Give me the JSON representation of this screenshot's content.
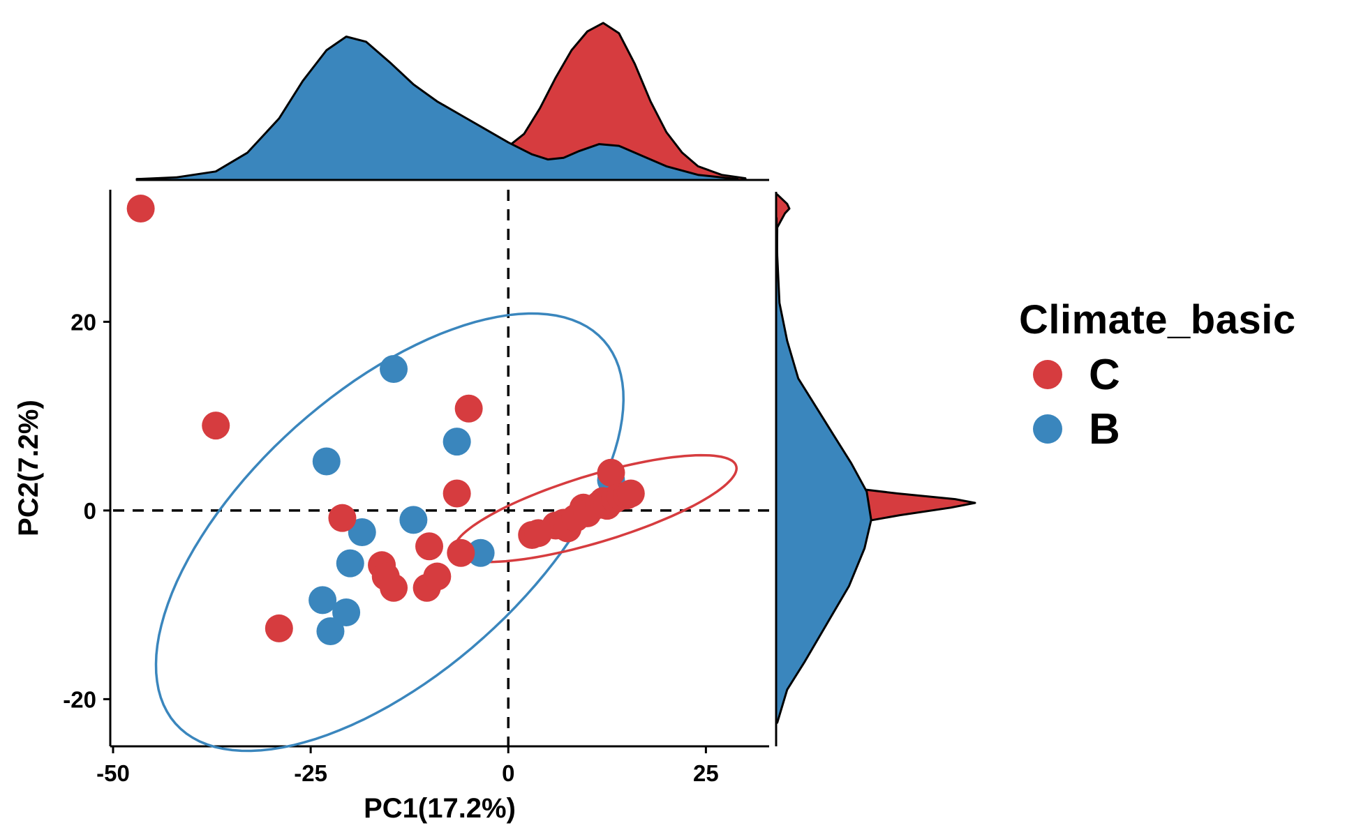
{
  "chart_data": {
    "type": "scatter",
    "xlabel": "PC1(17.2%)",
    "ylabel": "PC2(7.2%)",
    "xlim": [
      -50,
      33
    ],
    "ylim": [
      -25,
      34
    ],
    "x_ticks": [
      -50,
      -25,
      0,
      25
    ],
    "y_ticks": [
      -20,
      0,
      20
    ],
    "x_tick_labels": [
      "-50",
      "-25",
      "0",
      "25"
    ],
    "y_tick_labels": [
      "-20",
      "0",
      "20"
    ],
    "reference_lines": {
      "x": 0,
      "y": 0,
      "style": "dashed"
    },
    "marginal_density": true,
    "legend": {
      "title": "Climate_basic",
      "position": "right",
      "entries": [
        "C",
        "B"
      ]
    },
    "colors": {
      "C": "#d63c3f",
      "B": "#3a86bd"
    },
    "series": [
      {
        "name": "C",
        "color": "#d63c3f",
        "points": [
          [
            -46.5,
            32
          ],
          [
            -37,
            9
          ],
          [
            -29,
            -12.5
          ],
          [
            -21,
            -0.8
          ],
          [
            -16,
            -5.8
          ],
          [
            -15.5,
            -7
          ],
          [
            -14.5,
            -8.2
          ],
          [
            -10,
            -3.8
          ],
          [
            -10.3,
            -8.2
          ],
          [
            -9,
            -7
          ],
          [
            -6.5,
            1.8
          ],
          [
            -6,
            -4.5
          ],
          [
            -5,
            10.8
          ],
          [
            3,
            -2.6
          ],
          [
            3.8,
            -2.4
          ],
          [
            6,
            -1.6
          ],
          [
            7,
            -1.3
          ],
          [
            7.5,
            -1.9
          ],
          [
            8.5,
            -0.8
          ],
          [
            9.5,
            0.3
          ],
          [
            10,
            -0.3
          ],
          [
            11.5,
            0.6
          ],
          [
            12,
            1
          ],
          [
            12.5,
            0.5
          ],
          [
            13,
            4
          ],
          [
            13.5,
            1.2
          ],
          [
            14.2,
            1.5
          ],
          [
            15,
            1.6
          ],
          [
            15.5,
            1.8
          ]
        ],
        "ellipse": {
          "cx": 11,
          "cy": 0.2,
          "rx": 18.4,
          "ry": 3.6,
          "angle": 14
        }
      },
      {
        "name": "B",
        "color": "#3a86bd",
        "points": [
          [
            -14.5,
            15
          ],
          [
            -23,
            5.2
          ],
          [
            -12,
            -1
          ],
          [
            -18.5,
            -2.3
          ],
          [
            -20,
            -5.6
          ],
          [
            -23.5,
            -9.5
          ],
          [
            -20.5,
            -10.8
          ],
          [
            -22.5,
            -12.8
          ],
          [
            -6.5,
            7.3
          ],
          [
            -3.5,
            -4.5
          ],
          [
            13,
            3.2
          ]
        ],
        "ellipse": {
          "cx": -15,
          "cy": -2.3,
          "rx": 34,
          "ry": 16,
          "angle": 34
        }
      }
    ],
    "density_x": {
      "C": [
        [
          -47,
          0.05
        ],
        [
          -44,
          0.05
        ],
        [
          -40,
          0.08
        ],
        [
          -35,
          0.15
        ],
        [
          -30,
          0.3
        ],
        [
          -25,
          0.5
        ],
        [
          -20,
          0.7
        ],
        [
          -15,
          0.9
        ],
        [
          -10,
          1.1
        ],
        [
          -5,
          1.25
        ],
        [
          -1,
          1.6
        ],
        [
          2,
          2.7
        ],
        [
          4,
          4.2
        ],
        [
          6,
          6.0
        ],
        [
          8,
          7.6
        ],
        [
          10,
          8.7
        ],
        [
          12,
          9.2
        ],
        [
          14,
          8.6
        ],
        [
          16,
          6.8
        ],
        [
          18,
          4.6
        ],
        [
          20,
          2.8
        ],
        [
          22,
          1.6
        ],
        [
          24,
          0.8
        ],
        [
          27,
          0.3
        ],
        [
          30,
          0.1
        ]
      ],
      "B": [
        [
          -47,
          0.05
        ],
        [
          -42,
          0.15
        ],
        [
          -37,
          0.5
        ],
        [
          -33,
          1.6
        ],
        [
          -29,
          3.6
        ],
        [
          -26,
          5.8
        ],
        [
          -23,
          7.6
        ],
        [
          -20.5,
          8.4
        ],
        [
          -18,
          8.1
        ],
        [
          -15,
          6.9
        ],
        [
          -12,
          5.6
        ],
        [
          -9,
          4.6
        ],
        [
          -6,
          3.8
        ],
        [
          -3,
          3.0
        ],
        [
          0,
          2.2
        ],
        [
          3,
          1.5
        ],
        [
          5,
          1.2
        ],
        [
          7,
          1.3
        ],
        [
          9,
          1.7
        ],
        [
          11.5,
          2.1
        ],
        [
          14,
          2.0
        ],
        [
          17,
          1.4
        ],
        [
          20,
          0.8
        ],
        [
          24,
          0.3
        ],
        [
          29,
          0.05
        ]
      ]
    },
    "density_y": {
      "C": [
        [
          -13,
          0.0
        ],
        [
          -6,
          0.1
        ],
        [
          -3.5,
          0.6
        ],
        [
          -2.5,
          1.6
        ],
        [
          -1.5,
          3.2
        ],
        [
          -0.5,
          5.6
        ],
        [
          0.3,
          7.9
        ],
        [
          0.8,
          9.0
        ],
        [
          1.2,
          8.1
        ],
        [
          1.8,
          5.5
        ],
        [
          2.5,
          3.0
        ],
        [
          3.5,
          1.4
        ],
        [
          5,
          0.5
        ],
        [
          8,
          0.1
        ],
        [
          12,
          0.05
        ],
        [
          20,
          0.02
        ],
        [
          30,
          0.05
        ],
        [
          31.5,
          0.4
        ],
        [
          32,
          0.6
        ],
        [
          32.5,
          0.5
        ],
        [
          33.5,
          0.05
        ]
      ],
      "B": [
        [
          -22.5,
          0.05
        ],
        [
          -19,
          0.5
        ],
        [
          -16,
          1.3
        ],
        [
          -12,
          2.3
        ],
        [
          -8,
          3.3
        ],
        [
          -4,
          4.0
        ],
        [
          -1,
          4.3
        ],
        [
          2,
          4.1
        ],
        [
          5,
          3.4
        ],
        [
          8,
          2.6
        ],
        [
          11,
          1.8
        ],
        [
          14,
          1.0
        ],
        [
          18,
          0.5
        ],
        [
          22,
          0.15
        ],
        [
          27,
          0.05
        ],
        [
          31,
          0.02
        ]
      ]
    }
  }
}
